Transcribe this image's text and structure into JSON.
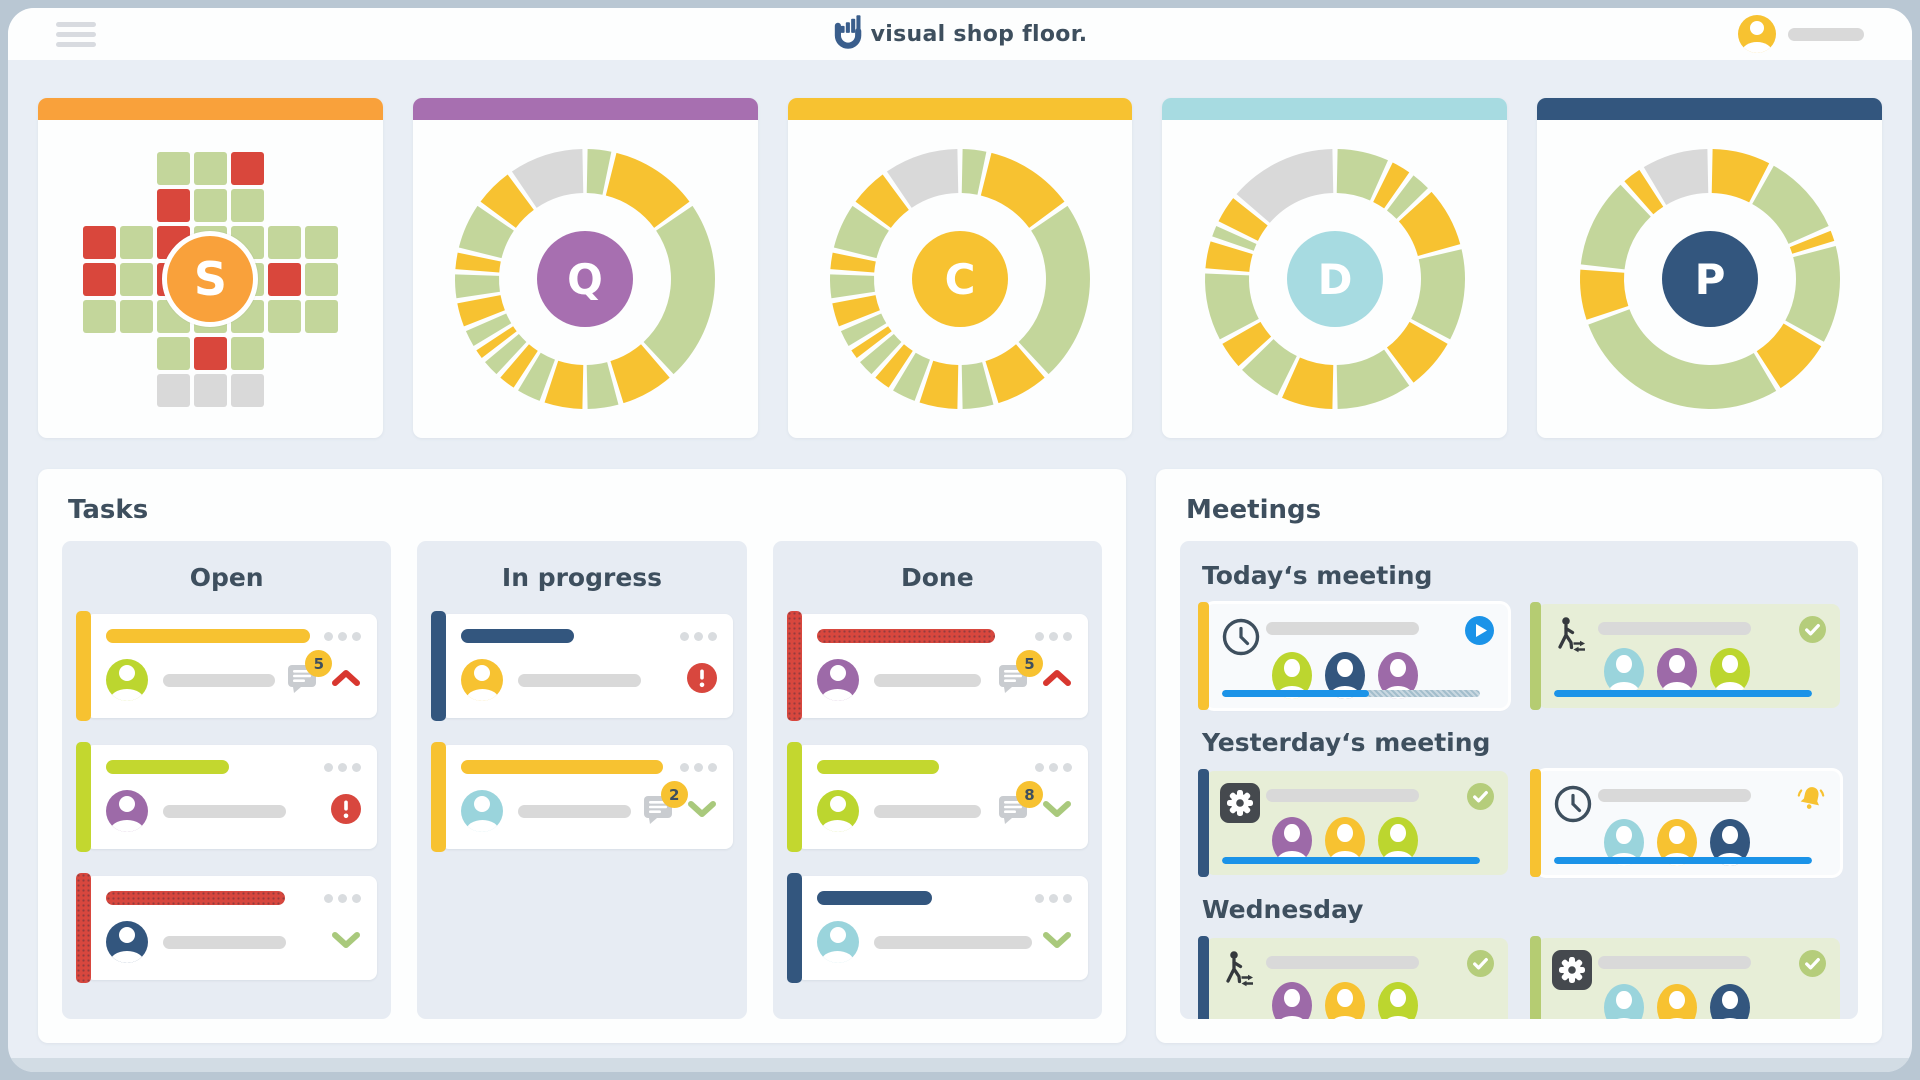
{
  "header": {
    "brand": "visual shop floor.",
    "brand_color": "#3A5E8C"
  },
  "palette": {
    "g": "#C3D69B",
    "y": "#F7C231",
    "x": "#D9D9D9",
    "r": "#D9473C",
    "lime": "#C3D72F",
    "darkblue": "#33567E",
    "purple": "#9D6AA8",
    "cyan": "#9AD4DC",
    "orange": "#F9A13B",
    "red": "#D8473E",
    "blue": "#1B93E8",
    "check_green": "#B5CD7B",
    "chevron_green": "#A9C97C",
    "chevron_red": "#D8372F"
  },
  "metric_cards": [
    {
      "letter": "S",
      "type": "grid",
      "header_color": "#F9A13B",
      "center_color": "#F9A13B",
      "grid_rows": [
        [
          "",
          "",
          "g",
          "g",
          "r",
          "",
          ""
        ],
        [
          "",
          "",
          "r",
          "g",
          "g",
          "",
          ""
        ],
        [
          "r",
          "g",
          "r",
          "g",
          "g",
          "g",
          "g"
        ],
        [
          "r",
          "g",
          "r",
          "g",
          "g",
          "r",
          "g"
        ],
        [
          "g",
          "g",
          "g",
          "g",
          "g",
          "g",
          "g"
        ],
        [
          "",
          "",
          "g",
          "r",
          "g",
          "",
          ""
        ],
        [
          "",
          "",
          "x",
          "x",
          "x",
          "",
          ""
        ]
      ]
    },
    {
      "letter": "Q",
      "type": "donut",
      "header_color": "#A76FB0",
      "center_color": "#A76FB0",
      "segments": [
        [
          "g",
          4
        ],
        [
          "y",
          13
        ],
        [
          "g",
          26
        ],
        [
          "y",
          8
        ],
        [
          "g",
          5
        ],
        [
          "y",
          6
        ],
        [
          "g",
          4
        ],
        [
          "y",
          3
        ],
        [
          "g",
          3
        ],
        [
          "y",
          2
        ],
        [
          "g",
          3
        ],
        [
          "y",
          4
        ],
        [
          "g",
          4
        ],
        [
          "y",
          3
        ],
        [
          "g",
          7
        ],
        [
          "y",
          6
        ],
        [
          "x",
          11
        ]
      ]
    },
    {
      "letter": "C",
      "type": "donut",
      "header_color": "#F7C231",
      "center_color": "#F7C231",
      "segments": [
        [
          "g",
          4
        ],
        [
          "y",
          13
        ],
        [
          "g",
          26
        ],
        [
          "y",
          8
        ],
        [
          "g",
          5
        ],
        [
          "y",
          6
        ],
        [
          "g",
          4
        ],
        [
          "y",
          3
        ],
        [
          "g",
          3
        ],
        [
          "y",
          2
        ],
        [
          "g",
          3
        ],
        [
          "y",
          4
        ],
        [
          "g",
          4
        ],
        [
          "y",
          3
        ],
        [
          "g",
          7
        ],
        [
          "y",
          6
        ],
        [
          "x",
          11
        ]
      ]
    },
    {
      "letter": "D",
      "type": "donut",
      "header_color": "#A7DBE1",
      "center_color": "#A7DBE1",
      "segments": [
        [
          "g",
          7
        ],
        [
          "y",
          3
        ],
        [
          "g",
          3
        ],
        [
          "y",
          8
        ],
        [
          "g",
          12
        ],
        [
          "y",
          7
        ],
        [
          "g",
          10
        ],
        [
          "y",
          7
        ],
        [
          "g",
          6
        ],
        [
          "y",
          4
        ],
        [
          "g",
          9
        ],
        [
          "y",
          4
        ],
        [
          "g",
          2
        ],
        [
          "y",
          4
        ],
        [
          "x",
          14
        ]
      ]
    },
    {
      "letter": "P",
      "type": "donut",
      "header_color": "#33567E",
      "center_color": "#33567E",
      "segments": [
        [
          "y",
          8
        ],
        [
          "g",
          11
        ],
        [
          "y",
          2
        ],
        [
          "g",
          13
        ],
        [
          "y",
          8
        ],
        [
          "g",
          29
        ],
        [
          "y",
          7
        ],
        [
          "g",
          12
        ],
        [
          "y",
          3
        ],
        [
          "x",
          9
        ]
      ]
    }
  ],
  "tasks": {
    "title": "Tasks",
    "columns": [
      {
        "label": "Open",
        "cards": [
          {
            "accent": "#F7C231",
            "dotted": false,
            "title_color": "#F7C231",
            "title_w": 80,
            "avatar": "#BCD62F",
            "meta_w": 44,
            "comment": true,
            "badge": "5",
            "status": "up"
          },
          {
            "accent": "#C3D72F",
            "dotted": false,
            "title_color": "#C3D72F",
            "title_w": 48,
            "avatar": "#9D6AA8",
            "meta_w": 48,
            "comment": false,
            "badge": null,
            "status": "alert"
          },
          {
            "accent": "#D8473E",
            "dotted": true,
            "title_color": "#D8473E",
            "title_w": 70,
            "avatar": "#33567E",
            "meta_w": 48,
            "comment": false,
            "badge": null,
            "status": "down"
          }
        ]
      },
      {
        "label": "In progress",
        "cards": [
          {
            "accent": "#33567E",
            "dotted": false,
            "title_color": "#33567E",
            "title_w": 44,
            "avatar": "#F7C231",
            "meta_w": 48,
            "comment": false,
            "badge": null,
            "status": "alert"
          },
          {
            "accent": "#F7C231",
            "dotted": false,
            "title_color": "#F7C231",
            "title_w": 79,
            "avatar": "#9AD4DC",
            "meta_w": 44,
            "comment": true,
            "badge": "2",
            "status": "down"
          }
        ]
      },
      {
        "label": "Done",
        "cards": [
          {
            "accent": "#D8473E",
            "dotted": true,
            "title_color": "#D8473E",
            "title_w": 70,
            "avatar": "#9D6AA8",
            "meta_w": 42,
            "comment": true,
            "badge": "5",
            "status": "up"
          },
          {
            "accent": "#C3D72F",
            "dotted": false,
            "title_color": "#C3D72F",
            "title_w": 48,
            "avatar": "#BCD62F",
            "meta_w": 42,
            "comment": true,
            "badge": "8",
            "status": "down"
          },
          {
            "accent": "#33567E",
            "dotted": false,
            "title_color": "#33567E",
            "title_w": 45,
            "avatar": "#9AD4DC",
            "meta_w": 62,
            "comment": false,
            "badge": null,
            "status": "down"
          }
        ]
      }
    ]
  },
  "meetings": {
    "title": "Meetings",
    "sections": [
      {
        "label": "Today‘s meeting",
        "cards": [
          {
            "bg": "white",
            "accent": "#F7C231",
            "icon": "clock",
            "status": "play",
            "avatars": [
              "#BCD62F",
              "#33567E",
              "#9D6AA8"
            ],
            "progress": 57
          },
          {
            "bg": "green",
            "accent": "#B5CC72",
            "icon": "walk",
            "status": "check",
            "avatars": [
              "#9AD4DC",
              "#9D6AA8",
              "#BCD62F"
            ],
            "progress": 100
          }
        ]
      },
      {
        "label": "Yesterday‘s meeting",
        "cards": [
          {
            "bg": "green",
            "accent": "#33567E",
            "icon": "gear",
            "status": "check",
            "avatars": [
              "#9D6AA8",
              "#F7C231",
              "#BCD62F"
            ],
            "progress": 100
          },
          {
            "bg": "white",
            "accent": "#F7C231",
            "icon": "clock",
            "status": "bell",
            "avatars": [
              "#9AD4DC",
              "#F7C231",
              "#33567E"
            ],
            "progress": 100
          }
        ]
      },
      {
        "label": "Wednesday",
        "cards": [
          {
            "bg": "green",
            "accent": "#33567E",
            "icon": "walk",
            "status": "check",
            "avatars": [
              "#9D6AA8",
              "#F7C231",
              "#BCD62F"
            ],
            "progress": 100
          },
          {
            "bg": "green",
            "accent": "#B5CC72",
            "icon": "gear",
            "status": "check",
            "avatars": [
              "#9AD4DC",
              "#F7C231",
              "#33567E"
            ],
            "progress": 100
          }
        ]
      }
    ]
  }
}
